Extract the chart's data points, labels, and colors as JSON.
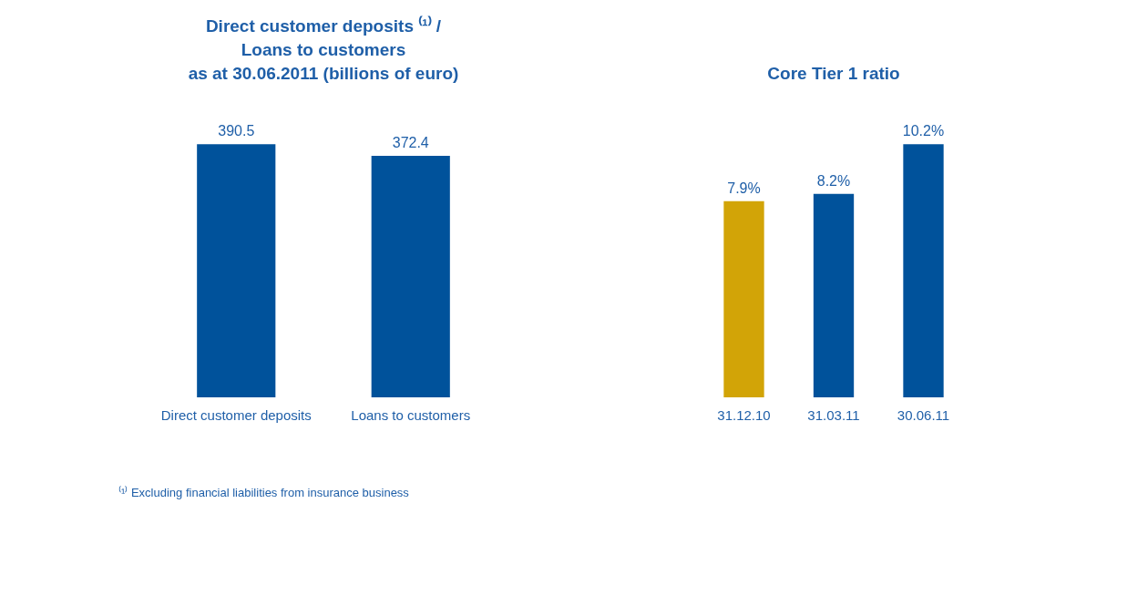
{
  "chart_data": [
    {
      "type": "bar",
      "title": "Direct customer deposits ⁽¹⁾ /\nLoans to customers\nas at 30.06.2011 (billions of euro)",
      "categories": [
        "Direct customer deposits",
        "Loans to customers"
      ],
      "values": [
        390.5,
        372.4
      ],
      "colors": [
        "#00529b",
        "#00529b"
      ],
      "data_labels": true,
      "annotations": [
        "⁽¹⁾ Excluding financial liabilities from insurance business"
      ]
    },
    {
      "type": "bar",
      "title": "Core Tier 1 ratio",
      "categories": [
        "31.12.10",
        "31.03.11",
        "30.06.11"
      ],
      "values": [
        7.9,
        8.2,
        10.2
      ],
      "colors": [
        "#d2a407",
        "#00529b",
        "#00529b"
      ],
      "value_labels": [
        "7.9%",
        "8.2%",
        "10.2%"
      ]
    }
  ]
}
